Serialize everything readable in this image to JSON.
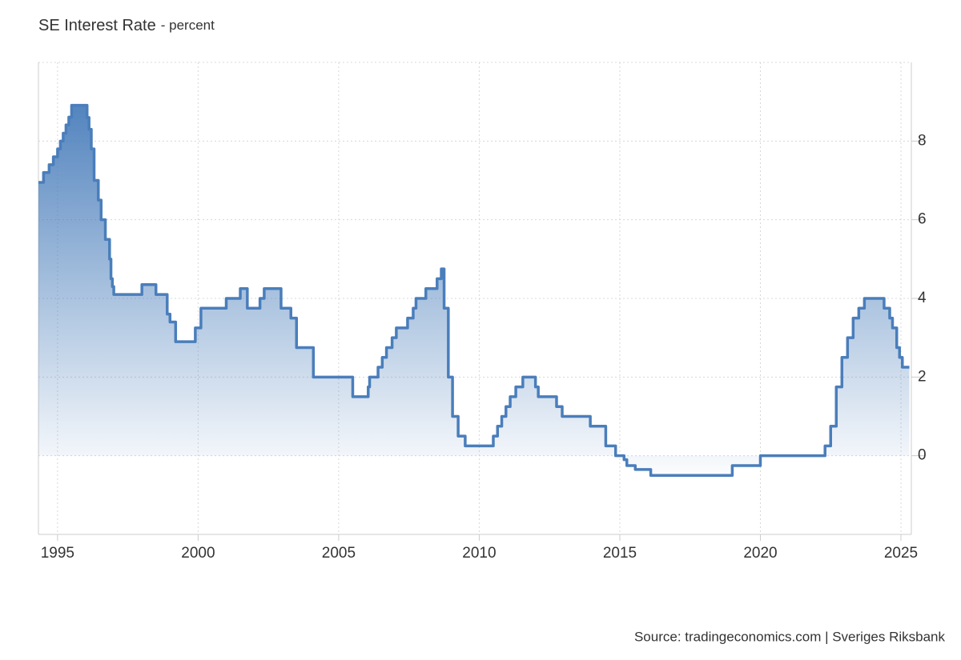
{
  "chart_data": {
    "type": "line",
    "title": "SE Interest Rate",
    "subtitle": "- percent",
    "source": "Source: tradingeconomics.com | Sveriges Riksbank",
    "drawstyle": "steps-post",
    "color": "#4a7ebb",
    "fill": true,
    "grid": true,
    "y_axis_side": "right",
    "x": [
      1994.32,
      1994.5,
      1994.7,
      1994.85,
      1995.0,
      1995.1,
      1995.2,
      1995.3,
      1995.4,
      1995.5,
      1996.0,
      1996.05,
      1996.12,
      1996.2,
      1996.3,
      1996.45,
      1996.55,
      1996.7,
      1996.85,
      1996.9,
      1996.95,
      1997.0,
      1998.0,
      1998.5,
      1998.9,
      1999.0,
      1999.2,
      1999.9,
      2000.1,
      2001.0,
      2001.5,
      2001.75,
      2002.2,
      2002.35,
      2002.95,
      2003.3,
      2003.5,
      2004.1,
      2005.5,
      2006.05,
      2006.1,
      2006.4,
      2006.55,
      2006.7,
      2006.9,
      2007.05,
      2007.45,
      2007.65,
      2007.75,
      2008.1,
      2008.5,
      2008.65,
      2008.75,
      2008.9,
      2009.05,
      2009.25,
      2009.5,
      2010.5,
      2010.65,
      2010.8,
      2010.95,
      2011.1,
      2011.3,
      2011.55,
      2012.0,
      2012.1,
      2012.75,
      2012.95,
      2013.95,
      2014.5,
      2014.85,
      2015.15,
      2015.25,
      2015.55,
      2016.1,
      2019.0,
      2020.0,
      2022.3,
      2022.5,
      2022.7,
      2022.9,
      2023.1,
      2023.3,
      2023.5,
      2023.7,
      2024.4,
      2024.6,
      2024.7,
      2024.85,
      2024.95,
      2025.05,
      2025.3
    ],
    "values": [
      6.95,
      7.2,
      7.4,
      7.6,
      7.8,
      8.0,
      8.2,
      8.41,
      8.61,
      8.91,
      8.91,
      8.6,
      8.3,
      7.8,
      7.0,
      6.5,
      6.0,
      5.5,
      5.0,
      4.5,
      4.3,
      4.1,
      4.35,
      4.1,
      3.6,
      3.4,
      2.9,
      3.25,
      3.75,
      4.0,
      4.25,
      3.75,
      4.0,
      4.25,
      3.75,
      3.5,
      2.75,
      2.0,
      1.5,
      1.75,
      2.0,
      2.25,
      2.5,
      2.75,
      3.0,
      3.25,
      3.5,
      3.75,
      4.0,
      4.25,
      4.5,
      4.75,
      3.75,
      2.0,
      1.0,
      0.5,
      0.25,
      0.5,
      0.75,
      1.0,
      1.25,
      1.5,
      1.75,
      2.0,
      1.75,
      1.5,
      1.25,
      1.0,
      0.75,
      0.25,
      0.0,
      -0.1,
      -0.25,
      -0.35,
      -0.5,
      -0.25,
      0.0,
      0.25,
      0.75,
      1.75,
      2.5,
      3.0,
      3.5,
      3.75,
      4.0,
      3.75,
      3.5,
      3.25,
      2.75,
      2.5,
      2.25,
      2.25
    ],
    "xlim": [
      1994.32,
      2025.37
    ],
    "xticks": [
      1995,
      2000,
      2005,
      2010,
      2015,
      2020,
      2025
    ],
    "ylim": [
      -2,
      10
    ],
    "yticks": [
      0,
      2,
      4,
      6,
      8
    ]
  }
}
